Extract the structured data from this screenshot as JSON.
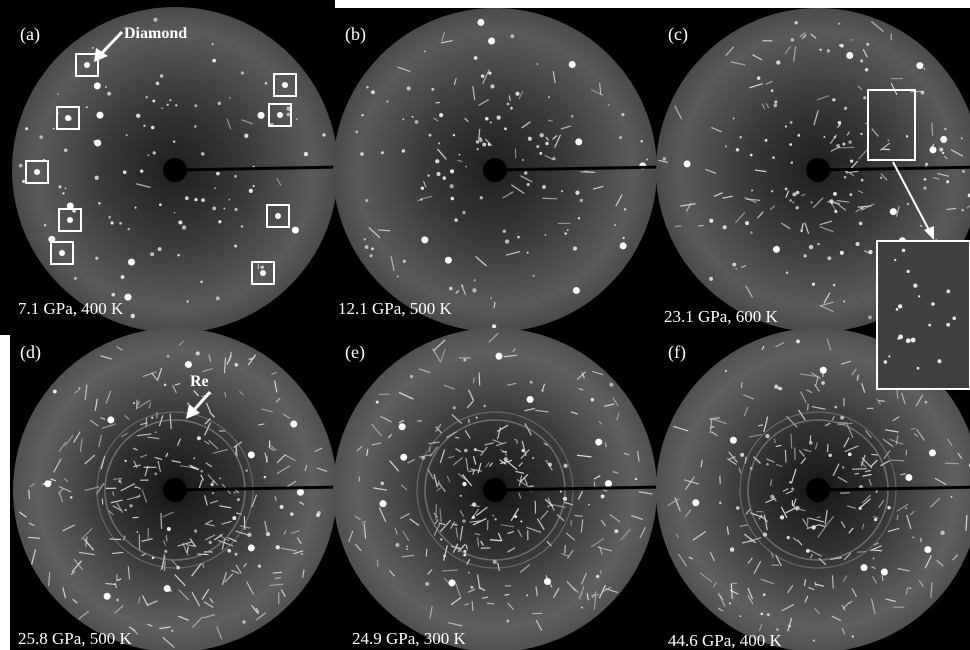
{
  "panels": [
    {
      "label": "(a)",
      "caption": "7.1 GPa, 400 K"
    },
    {
      "label": "(b)",
      "caption": "12.1 GPa, 500 K"
    },
    {
      "label": "(c)",
      "caption": "23.1 GPa, 600 K"
    },
    {
      "label": "(d)",
      "caption": "25.8 GPa, 500 K"
    },
    {
      "label": "(e)",
      "caption": "24.9 GPa, 300 K"
    },
    {
      "label": "(f)",
      "caption": "44.6 GPa, 400 K"
    }
  ],
  "annotations": {
    "diamond": "Diamond",
    "re": "Re"
  }
}
